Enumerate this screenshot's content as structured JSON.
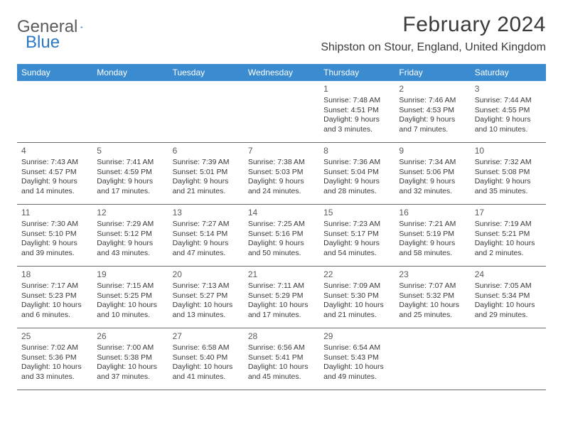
{
  "brand": {
    "part1": "General",
    "part2": "Blue"
  },
  "title": "February 2024",
  "location": "Shipston on Stour, England, United Kingdom",
  "colors": {
    "header_bg": "#3b8bd0",
    "header_fg": "#ffffff",
    "text": "#3a3a3a",
    "rule": "#6a6a6a",
    "logo_gray": "#5a5a5a",
    "logo_blue": "#2a77c4"
  },
  "typography": {
    "title_fontsize": 30,
    "location_fontsize": 16,
    "dayhead_fontsize": 12,
    "cell_fontsize": 10.5
  },
  "dayNames": [
    "Sunday",
    "Monday",
    "Tuesday",
    "Wednesday",
    "Thursday",
    "Friday",
    "Saturday"
  ],
  "weeks": [
    [
      null,
      null,
      null,
      null,
      {
        "n": "1",
        "sr": "Sunrise: 7:48 AM",
        "ss": "Sunset: 4:51 PM",
        "dl": "Daylight: 9 hours and 3 minutes."
      },
      {
        "n": "2",
        "sr": "Sunrise: 7:46 AM",
        "ss": "Sunset: 4:53 PM",
        "dl": "Daylight: 9 hours and 7 minutes."
      },
      {
        "n": "3",
        "sr": "Sunrise: 7:44 AM",
        "ss": "Sunset: 4:55 PM",
        "dl": "Daylight: 9 hours and 10 minutes."
      }
    ],
    [
      {
        "n": "4",
        "sr": "Sunrise: 7:43 AM",
        "ss": "Sunset: 4:57 PM",
        "dl": "Daylight: 9 hours and 14 minutes."
      },
      {
        "n": "5",
        "sr": "Sunrise: 7:41 AM",
        "ss": "Sunset: 4:59 PM",
        "dl": "Daylight: 9 hours and 17 minutes."
      },
      {
        "n": "6",
        "sr": "Sunrise: 7:39 AM",
        "ss": "Sunset: 5:01 PM",
        "dl": "Daylight: 9 hours and 21 minutes."
      },
      {
        "n": "7",
        "sr": "Sunrise: 7:38 AM",
        "ss": "Sunset: 5:03 PM",
        "dl": "Daylight: 9 hours and 24 minutes."
      },
      {
        "n": "8",
        "sr": "Sunrise: 7:36 AM",
        "ss": "Sunset: 5:04 PM",
        "dl": "Daylight: 9 hours and 28 minutes."
      },
      {
        "n": "9",
        "sr": "Sunrise: 7:34 AM",
        "ss": "Sunset: 5:06 PM",
        "dl": "Daylight: 9 hours and 32 minutes."
      },
      {
        "n": "10",
        "sr": "Sunrise: 7:32 AM",
        "ss": "Sunset: 5:08 PM",
        "dl": "Daylight: 9 hours and 35 minutes."
      }
    ],
    [
      {
        "n": "11",
        "sr": "Sunrise: 7:30 AM",
        "ss": "Sunset: 5:10 PM",
        "dl": "Daylight: 9 hours and 39 minutes."
      },
      {
        "n": "12",
        "sr": "Sunrise: 7:29 AM",
        "ss": "Sunset: 5:12 PM",
        "dl": "Daylight: 9 hours and 43 minutes."
      },
      {
        "n": "13",
        "sr": "Sunrise: 7:27 AM",
        "ss": "Sunset: 5:14 PM",
        "dl": "Daylight: 9 hours and 47 minutes."
      },
      {
        "n": "14",
        "sr": "Sunrise: 7:25 AM",
        "ss": "Sunset: 5:16 PM",
        "dl": "Daylight: 9 hours and 50 minutes."
      },
      {
        "n": "15",
        "sr": "Sunrise: 7:23 AM",
        "ss": "Sunset: 5:17 PM",
        "dl": "Daylight: 9 hours and 54 minutes."
      },
      {
        "n": "16",
        "sr": "Sunrise: 7:21 AM",
        "ss": "Sunset: 5:19 PM",
        "dl": "Daylight: 9 hours and 58 minutes."
      },
      {
        "n": "17",
        "sr": "Sunrise: 7:19 AM",
        "ss": "Sunset: 5:21 PM",
        "dl": "Daylight: 10 hours and 2 minutes."
      }
    ],
    [
      {
        "n": "18",
        "sr": "Sunrise: 7:17 AM",
        "ss": "Sunset: 5:23 PM",
        "dl": "Daylight: 10 hours and 6 minutes."
      },
      {
        "n": "19",
        "sr": "Sunrise: 7:15 AM",
        "ss": "Sunset: 5:25 PM",
        "dl": "Daylight: 10 hours and 10 minutes."
      },
      {
        "n": "20",
        "sr": "Sunrise: 7:13 AM",
        "ss": "Sunset: 5:27 PM",
        "dl": "Daylight: 10 hours and 13 minutes."
      },
      {
        "n": "21",
        "sr": "Sunrise: 7:11 AM",
        "ss": "Sunset: 5:29 PM",
        "dl": "Daylight: 10 hours and 17 minutes."
      },
      {
        "n": "22",
        "sr": "Sunrise: 7:09 AM",
        "ss": "Sunset: 5:30 PM",
        "dl": "Daylight: 10 hours and 21 minutes."
      },
      {
        "n": "23",
        "sr": "Sunrise: 7:07 AM",
        "ss": "Sunset: 5:32 PM",
        "dl": "Daylight: 10 hours and 25 minutes."
      },
      {
        "n": "24",
        "sr": "Sunrise: 7:05 AM",
        "ss": "Sunset: 5:34 PM",
        "dl": "Daylight: 10 hours and 29 minutes."
      }
    ],
    [
      {
        "n": "25",
        "sr": "Sunrise: 7:02 AM",
        "ss": "Sunset: 5:36 PM",
        "dl": "Daylight: 10 hours and 33 minutes."
      },
      {
        "n": "26",
        "sr": "Sunrise: 7:00 AM",
        "ss": "Sunset: 5:38 PM",
        "dl": "Daylight: 10 hours and 37 minutes."
      },
      {
        "n": "27",
        "sr": "Sunrise: 6:58 AM",
        "ss": "Sunset: 5:40 PM",
        "dl": "Daylight: 10 hours and 41 minutes."
      },
      {
        "n": "28",
        "sr": "Sunrise: 6:56 AM",
        "ss": "Sunset: 5:41 PM",
        "dl": "Daylight: 10 hours and 45 minutes."
      },
      {
        "n": "29",
        "sr": "Sunrise: 6:54 AM",
        "ss": "Sunset: 5:43 PM",
        "dl": "Daylight: 10 hours and 49 minutes."
      },
      null,
      null
    ]
  ]
}
